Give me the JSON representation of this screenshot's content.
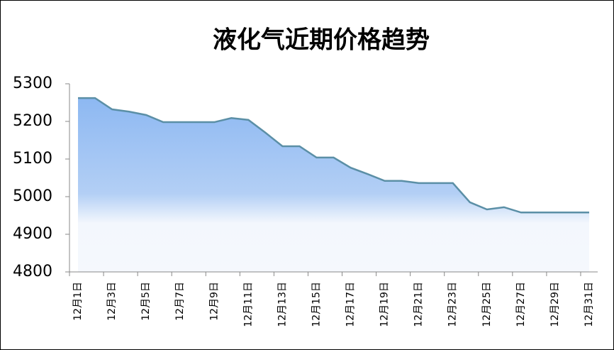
{
  "chart_data": {
    "type": "area",
    "title": "液化气近期价格趋势",
    "categories": [
      "12月1日",
      null,
      "12月3日",
      null,
      "12月5日",
      null,
      "12月7日",
      null,
      "12月9日",
      null,
      "12月11日",
      null,
      "12月13日",
      null,
      "12月15日",
      null,
      "12月17日",
      null,
      "12月19日",
      null,
      "12月21日",
      null,
      "12月23日",
      null,
      "12月25日",
      null,
      "12月27日",
      null,
      "12月29日",
      null,
      "12月31日"
    ],
    "values": [
      5262,
      5262,
      5232,
      5226,
      5217,
      5198,
      5198,
      5198,
      5198,
      5209,
      5204,
      5170,
      5134,
      5134,
      5104,
      5104,
      5077,
      5060,
      5042,
      5042,
      5036,
      5036,
      5036,
      4985,
      4966,
      4972,
      4958,
      4958,
      4958,
      4958,
      4958
    ],
    "color": "#5b8fa6",
    "ylim": [
      4800,
      5300
    ],
    "yticks": [
      4800,
      4900,
      5000,
      5100,
      5200,
      5300
    ]
  }
}
